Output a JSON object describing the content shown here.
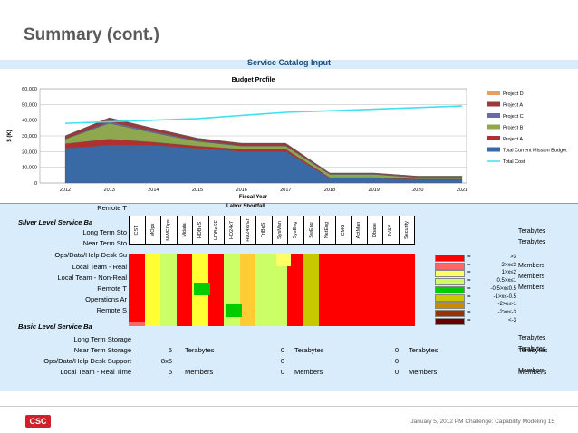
{
  "page": {
    "title": "Summary (cont.)",
    "sheet_header": "Service Catalog Input",
    "labor_shortfall": "Labor Shortfall",
    "footer": "January 5, 2012  PM Challenge:  Capability Modeling  15",
    "logo": "CSC"
  },
  "chart_data": {
    "type": "area",
    "title": "Budget Profile",
    "xlabel": "Fiscal Year",
    "ylabel": "$ (K)",
    "ylim": [
      0,
      60000
    ],
    "yticks": [
      "0",
      "10,000",
      "20,000",
      "30,000",
      "40,000",
      "50,000",
      "60,000"
    ],
    "x": [
      "2012",
      "2013",
      "2014",
      "2015",
      "2016",
      "2017",
      "2018",
      "2019",
      "2020",
      "2021"
    ],
    "series": [
      {
        "name": "Project D",
        "color": "#e8a060",
        "values": [
          0,
          0,
          0,
          0,
          0,
          0,
          0,
          0,
          0,
          0
        ]
      },
      {
        "name": "Project A",
        "color": "#9a3a3a",
        "values": [
          2000,
          2500,
          2000,
          1500,
          1500,
          1500,
          500,
          500,
          500,
          500
        ]
      },
      {
        "name": "Project C",
        "color": "#6a6aa6",
        "values": [
          0,
          1000,
          800,
          500,
          300,
          300,
          300,
          300,
          300,
          300
        ]
      },
      {
        "name": "Project B",
        "color": "#8fa84f",
        "values": [
          3000,
          10000,
          6000,
          3000,
          2000,
          2000,
          2000,
          2000,
          1000,
          1000
        ]
      },
      {
        "name": "Project A",
        "color": "#b03030",
        "values": [
          3000,
          4000,
          2000,
          1500,
          1500,
          1500,
          500,
          500,
          500,
          500
        ]
      },
      {
        "name": "Total Current Mission Budget",
        "color": "#3a6aa6",
        "values": [
          22000,
          24000,
          24000,
          22000,
          20000,
          20000,
          3000,
          3000,
          2000,
          2000
        ]
      }
    ],
    "line": {
      "name": "Total  Cost",
      "color": "#40e0f0",
      "values": [
        38000,
        39000,
        40000,
        41000,
        43000,
        45000,
        46000,
        47000,
        48000,
        49000
      ]
    }
  },
  "table": {
    "rows_top": [
      "Remote T"
    ],
    "silver_title": "Silver Level Service Ba",
    "silver_rows": [
      "Long Term Sto",
      "Near Term Sto",
      "Ops/Data/Help Desk Su",
      "Local Team - Real",
      "Local Team - Non-Real",
      "Remote T",
      "Operations Ar",
      "Remote S"
    ],
    "basic_title": "Basic Level Service Ba",
    "basic_rows": [
      "Long Term Storage",
      "Near Term Storage",
      "Ops/Data/Help Desk Support",
      "Local Team - Real Time"
    ],
    "columns": [
      "CST",
      "MOps",
      "MWEOps",
      "Mdata",
      "HDBeS",
      "HDBeSE",
      "HD24x7",
      "HD24x7Er",
      "TriBeS",
      "SysMan",
      "SysEng",
      "SwEng",
      "NetEng",
      "CMG",
      "ActMan",
      "Dbase",
      "IV&V",
      "Security"
    ],
    "right_labels": [
      "Terabytes",
      "Terabytes",
      "Members",
      "Members",
      "Members",
      "Terabytes",
      "Terabytes",
      "Members"
    ],
    "basic_values": {
      "near_term": [
        "5",
        "Terabytes",
        "0",
        "Terabytes",
        "0",
        "Terabytes",
        "Terabytes"
      ],
      "ops": [
        "8x5",
        "0",
        "0"
      ],
      "local": [
        "5",
        "Members",
        "0",
        "Members",
        "0",
        "Members",
        "Members"
      ]
    }
  },
  "legend": {
    "items": [
      {
        "label": ">3",
        "color": "#ff0000"
      },
      {
        "label": "2>x≤3",
        "color": "#ff6666"
      },
      {
        "label": "1>x≤2",
        "color": "#ffff66"
      },
      {
        "label": "0.5>x≤1",
        "color": "#ccff66"
      },
      {
        "label": "-0.5>x≤0.5",
        "color": "#00cc00"
      },
      {
        "label": "-1>x≤-0.5",
        "color": "#c8c800"
      },
      {
        "label": "-2>x≤-1",
        "color": "#cc8800"
      },
      {
        "label": "-2>x≤-3",
        "color": "#993300"
      },
      {
        "label": "<-3",
        "color": "#660000"
      }
    ]
  }
}
